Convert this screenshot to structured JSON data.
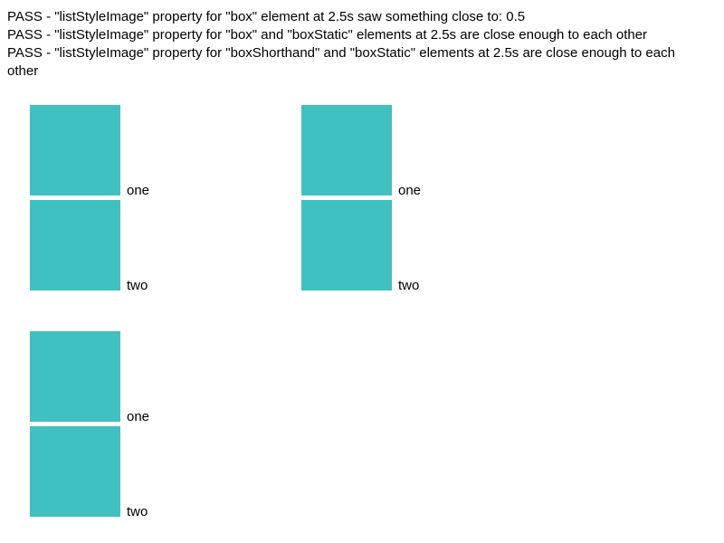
{
  "results": [
    "PASS - \"listStyleImage\" property for \"box\" element at 2.5s saw something close to: 0.5",
    "PASS - \"listStyleImage\" property for \"box\" and \"boxStatic\" elements at 2.5s are close enough to each other",
    "PASS - \"listStyleImage\" property for \"boxShorthand\" and \"boxStatic\" elements at 2.5s are close enough to each other"
  ],
  "colors": {
    "marker": "#40c0c0",
    "text": "#000000",
    "background": "#ffffff"
  },
  "lists": [
    {
      "items": [
        "one",
        "two"
      ]
    },
    {
      "items": [
        "one",
        "two"
      ]
    },
    {
      "items": [
        "one",
        "two"
      ]
    }
  ]
}
